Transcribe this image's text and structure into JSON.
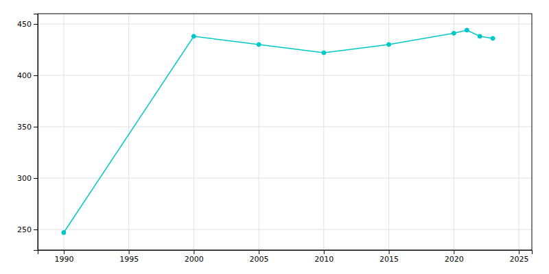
{
  "chart_data": {
    "type": "line",
    "x": [
      1990,
      2000,
      2005,
      2010,
      2015,
      2020,
      2021,
      2022,
      2023
    ],
    "values": [
      247,
      438,
      430,
      422,
      430,
      441,
      444,
      438,
      436
    ],
    "color": "#00c8c8",
    "marker": "circle",
    "xlim": [
      1988,
      2026
    ],
    "xticks": [
      1990,
      1995,
      2000,
      2005,
      2010,
      2015,
      2020,
      2025
    ],
    "ylim": [
      230,
      460
    ],
    "yticks": [
      250,
      300,
      350,
      400,
      450
    ],
    "grid": true
  }
}
